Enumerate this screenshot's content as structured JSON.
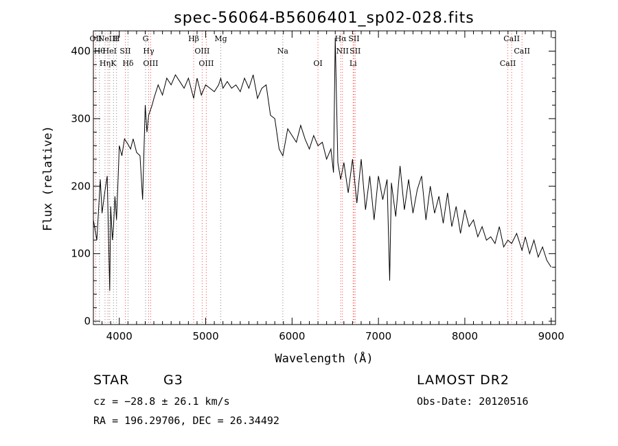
{
  "chart_data": {
    "type": "line",
    "title": "spec-56064-B5606401_sp02-028.fits",
    "xlabel": "Wavelength (Å)",
    "ylabel": "Flux (relative)",
    "xlim": [
      3700,
      9050
    ],
    "ylim": [
      -5,
      430
    ],
    "xticks": [
      4000,
      5000,
      6000,
      7000,
      8000,
      9000
    ],
    "yticks": [
      0,
      100,
      200,
      300,
      400
    ],
    "grid": false,
    "series": [
      {
        "color": "#000000",
        "x": [
          3700,
          3740,
          3780,
          3800,
          3830,
          3860,
          3889,
          3900,
          3920,
          3933,
          3950,
          3968,
          3990,
          4000,
          4030,
          4060,
          4101,
          4130,
          4160,
          4200,
          4240,
          4270,
          4300,
          4320,
          4340,
          4380,
          4400,
          4450,
          4500,
          4550,
          4600,
          4650,
          4700,
          4750,
          4800,
          4861,
          4900,
          4950,
          5000,
          5050,
          5100,
          5150,
          5175,
          5200,
          5250,
          5300,
          5350,
          5400,
          5450,
          5500,
          5550,
          5600,
          5650,
          5700,
          5750,
          5800,
          5850,
          5893,
          5950,
          6000,
          6050,
          6100,
          6150,
          6200,
          6250,
          6300,
          6350,
          6400,
          6450,
          6480,
          6500,
          6530,
          6563,
          6600,
          6650,
          6700,
          6750,
          6800,
          6850,
          6900,
          6950,
          7000,
          7050,
          7100,
          7130,
          7150,
          7200,
          7250,
          7300,
          7350,
          7400,
          7450,
          7500,
          7550,
          7600,
          7650,
          7700,
          7750,
          7800,
          7850,
          7900,
          7950,
          8000,
          8050,
          8100,
          8150,
          8200,
          8250,
          8300,
          8350,
          8400,
          8450,
          8498,
          8542,
          8600,
          8662,
          8700,
          8750,
          8800,
          8850,
          8900,
          8950,
          9000
        ],
        "values": [
          150,
          120,
          210,
          160,
          190,
          215,
          45,
          170,
          120,
          140,
          185,
          150,
          225,
          260,
          245,
          270,
          262,
          255,
          270,
          250,
          245,
          180,
          320,
          280,
          305,
          320,
          330,
          350,
          335,
          360,
          350,
          365,
          355,
          345,
          360,
          330,
          360,
          335,
          350,
          345,
          340,
          350,
          360,
          345,
          355,
          345,
          350,
          340,
          360,
          345,
          365,
          330,
          345,
          350,
          305,
          300,
          255,
          245,
          285,
          275,
          265,
          290,
          270,
          255,
          275,
          260,
          265,
          240,
          255,
          220,
          420,
          235,
          210,
          235,
          190,
          240,
          175,
          240,
          165,
          215,
          150,
          215,
          180,
          210,
          60,
          205,
          155,
          230,
          165,
          210,
          160,
          195,
          215,
          150,
          200,
          160,
          185,
          145,
          190,
          140,
          170,
          130,
          165,
          140,
          150,
          125,
          140,
          120,
          125,
          115,
          140,
          110,
          120,
          115,
          130,
          105,
          125,
          100,
          120,
          95,
          110,
          90,
          80
        ]
      }
    ],
    "lines": [
      {
        "wavelength": 3727,
        "color": "#ff4040",
        "labels": [
          "OII"
        ]
      },
      {
        "wavelength": 3770,
        "color": "#808080",
        "labels": [
          "Hθ"
        ]
      },
      {
        "wavelength": 3835,
        "color": "#808080",
        "labels": [
          "Hη"
        ]
      },
      {
        "wavelength": 3869,
        "color": "#ff4040",
        "labels": [
          "NeIII"
        ]
      },
      {
        "wavelength": 3889,
        "color": "#808080",
        "labels": [
          "HeI"
        ]
      },
      {
        "wavelength": 3933,
        "color": "#808080",
        "labels": [
          "K"
        ]
      },
      {
        "wavelength": 3968,
        "color": "#808080",
        "labels": [
          "H"
        ]
      },
      {
        "wavelength": 4070,
        "color": "#ff4040",
        "labels": [
          "SII"
        ]
      },
      {
        "wavelength": 4101,
        "color": "#808080",
        "labels": [
          "Hδ"
        ]
      },
      {
        "wavelength": 4304,
        "color": "#808080",
        "labels": [
          "G"
        ]
      },
      {
        "wavelength": 4340,
        "color": "#ff4040",
        "labels": [
          "Hγ"
        ]
      },
      {
        "wavelength": 4363,
        "color": "#ff4040",
        "labels": [
          "OIII"
        ]
      },
      {
        "wavelength": 4861,
        "color": "#ff4040",
        "labels": [
          "Hβ"
        ]
      },
      {
        "wavelength": 4959,
        "color": "#ff4040",
        "labels": [
          "OIII"
        ]
      },
      {
        "wavelength": 5007,
        "color": "#ff4040",
        "labels": [
          "OIII"
        ]
      },
      {
        "wavelength": 5175,
        "color": "#808080",
        "labels": [
          "Mg"
        ]
      },
      {
        "wavelength": 5893,
        "color": "#808080",
        "labels": [
          "Na"
        ]
      },
      {
        "wavelength": 6300,
        "color": "#ff4040",
        "labels": [
          "OI"
        ]
      },
      {
        "wavelength": 6563,
        "color": "#ff4040",
        "labels": [
          "Hα"
        ]
      },
      {
        "wavelength": 6583,
        "color": "#ff4040",
        "labels": [
          "NII"
        ]
      },
      {
        "wavelength": 6707,
        "color": "#ff4040",
        "labels": [
          "Li"
        ]
      },
      {
        "wavelength": 6717,
        "color": "#ff4040",
        "labels": [
          "SII"
        ]
      },
      {
        "wavelength": 6731,
        "color": "#ff4040",
        "labels": [
          "SII"
        ]
      },
      {
        "wavelength": 8498,
        "color": "#ff4040",
        "labels": [
          "CaII"
        ]
      },
      {
        "wavelength": 8542,
        "color": "#ff4040",
        "labels": [
          "CaII"
        ]
      },
      {
        "wavelength": 8662,
        "color": "#ff4040",
        "labels": [
          "CaII"
        ]
      }
    ]
  },
  "info": {
    "class": "STAR",
    "subclass": "G3",
    "survey": "LAMOST DR2",
    "cz": "cz = −28.8 ± 26.1 km/s",
    "obs_date": "Obs-Date: 20120516",
    "radec": "RA = 196.29706, DEC =  26.34492"
  }
}
